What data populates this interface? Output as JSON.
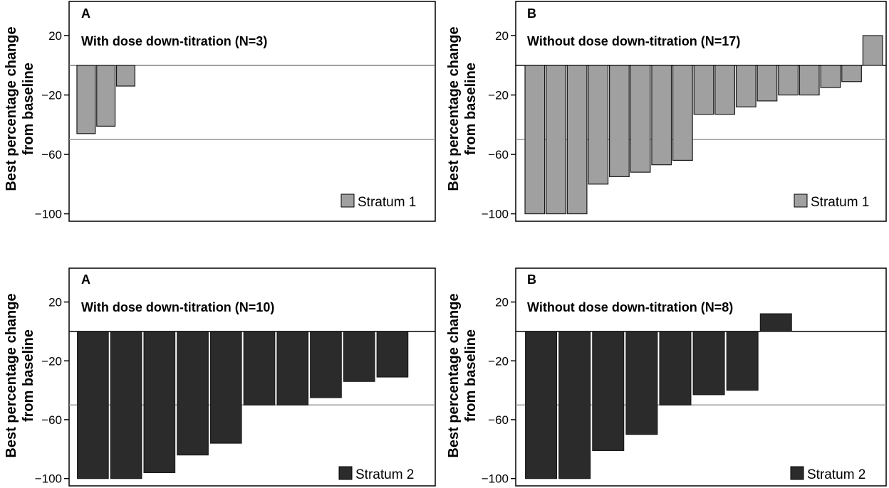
{
  "figure": {
    "ylabel_line1": "Best percentage change",
    "ylabel_line2": "from baseline"
  },
  "chart_data": [
    {
      "type": "bar",
      "panel": "A",
      "title": "With dose down-titration (N=3)",
      "ylabel": "Best percentage change from baseline",
      "yticks": [
        "20",
        "−20",
        "−60",
        "−100"
      ],
      "tick_values": [
        20,
        -20,
        -60,
        -100
      ],
      "ylim": [
        -105,
        43
      ],
      "reference_line": -50,
      "legend": "Stratum 1",
      "legend_position": "bottom-right",
      "color": "#a0a0a0",
      "slots": 18,
      "values": [
        -46,
        -41,
        -14
      ]
    },
    {
      "type": "bar",
      "panel": "B",
      "title": "Without dose down-titration (N=17)",
      "ylabel": "Best percentage change from baseline",
      "yticks": [
        "20",
        "−20",
        "−60",
        "−100"
      ],
      "tick_values": [
        20,
        -20,
        -60,
        -100
      ],
      "ylim": [
        -105,
        43
      ],
      "reference_line": -50,
      "legend": "Stratum 1",
      "legend_position": "bottom-right",
      "color": "#a0a0a0",
      "slots": 17,
      "values": [
        -100,
        -100,
        -100,
        -80,
        -75,
        -72,
        -67,
        -64,
        -33,
        -33,
        -28,
        -24,
        -20,
        -20,
        -15,
        -11,
        20
      ]
    },
    {
      "type": "bar",
      "panel": "A",
      "title": "With dose down-titration (N=10)",
      "ylabel": "Best percentage change from baseline",
      "yticks": [
        "20",
        "−20",
        "−60",
        "−100"
      ],
      "tick_values": [
        20,
        -20,
        -60,
        -100
      ],
      "ylim": [
        -105,
        43
      ],
      "reference_line": -50,
      "legend": "Stratum 2",
      "legend_position": "bottom-right",
      "color": "#2b2b2b",
      "slots": 10.7,
      "values": [
        -100,
        -100,
        -96,
        -84,
        -76,
        -50,
        -50,
        -45,
        -34,
        -31
      ]
    },
    {
      "type": "bar",
      "panel": "B",
      "title": "Without dose down-titration (N=8)",
      "ylabel": "Best percentage change from baseline",
      "yticks": [
        "20",
        "−20",
        "−60",
        "−100"
      ],
      "tick_values": [
        20,
        -20,
        -60,
        -100
      ],
      "ylim": [
        -105,
        43
      ],
      "reference_line": -50,
      "legend": "Stratum 2",
      "legend_position": "bottom-right",
      "color": "#2b2b2b",
      "slots": 10.7,
      "values": [
        -100,
        -100,
        -81,
        -70,
        -50,
        -43,
        -40,
        12
      ]
    }
  ]
}
